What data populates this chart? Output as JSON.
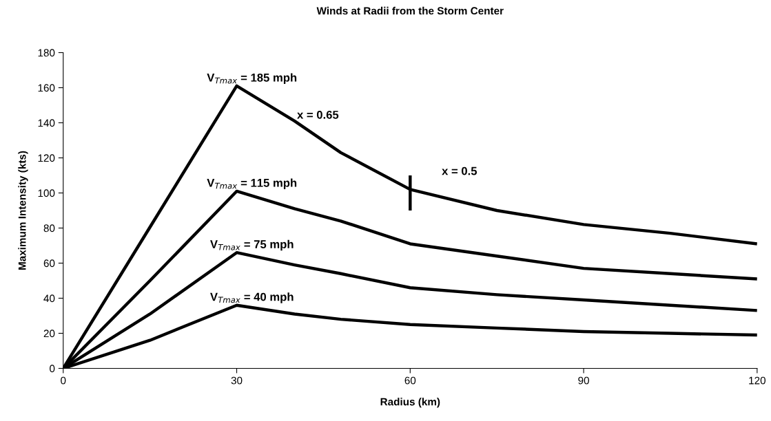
{
  "chart_data": {
    "type": "line",
    "title": "Winds at Radii from the Storm Center",
    "xlabel": "Radius (km)",
    "ylabel": "Maximum Intensity (kts)",
    "xlim": [
      0,
      120
    ],
    "xticks": [
      0,
      30,
      60,
      90,
      120
    ],
    "ylim": [
      0,
      180
    ],
    "yticks": [
      0,
      20,
      40,
      60,
      80,
      100,
      120,
      140,
      160,
      180
    ],
    "grid": false,
    "legend": false,
    "marker": "none",
    "line_style": "solid",
    "x": [
      0,
      15,
      30,
      40,
      48,
      60,
      75,
      90,
      105,
      120
    ],
    "series": [
      {
        "name": "V$_{Tmax}$ = 185 mph",
        "color": "#000000",
        "values": [
          0,
          80.5,
          161,
          141,
          123,
          102,
          90,
          82,
          77,
          71
        ]
      },
      {
        "name": "V$_{Tmax}$ = 115 mph",
        "color": "#000000",
        "values": [
          0,
          50,
          101,
          91,
          84,
          71,
          64,
          57,
          54,
          51
        ]
      },
      {
        "name": "V$_{Tmax}$ = 75 mph",
        "color": "#000000",
        "values": [
          0,
          31,
          66,
          59,
          54,
          46,
          42,
          39,
          36,
          33
        ]
      },
      {
        "name": "V$_{Tmax}$ = 40 mph",
        "color": "#000000",
        "values": [
          0,
          16,
          36,
          31,
          28,
          25,
          23,
          21,
          20,
          19
        ]
      },
      {
        "color": "#000000",
        "x": [
          60,
          60
        ],
        "values": [
          90,
          110
        ]
      }
    ],
    "annotations": [
      "x = 0.65",
      "x = 0.5"
    ]
  }
}
